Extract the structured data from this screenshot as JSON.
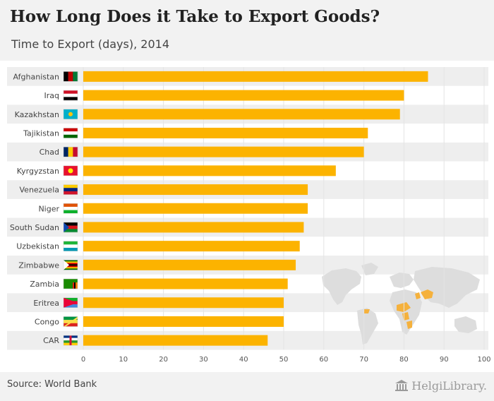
{
  "header": {
    "title": "How Long Does it Take to Export Goods?",
    "subtitle": "Time to Export (days), 2014"
  },
  "footer": {
    "source": "Source: World Bank",
    "brand": "HelgiLibrary."
  },
  "colors": {
    "bar": "#FCB300",
    "band": "#EEEEEE",
    "header_bg": "#F2F2F2",
    "map_land": "#DDDDDD",
    "map_highlight": "#F5B13C"
  },
  "chart_data": {
    "type": "bar",
    "orientation": "horizontal",
    "title": "How Long Does it Take to Export Goods?",
    "subtitle": "Time to Export (days), 2014",
    "xlabel": "",
    "ylabel": "",
    "xlim": [
      0,
      100
    ],
    "xticks": [
      0,
      10,
      20,
      30,
      40,
      50,
      60,
      70,
      80,
      90,
      100
    ],
    "grid": true,
    "categories": [
      "Afghanistan",
      "Iraq",
      "Kazakhstan",
      "Tajikistan",
      "Chad",
      "Kyrgyzstan",
      "Venezuela",
      "Niger",
      "South Sudan",
      "Uzbekistan",
      "Zimbabwe",
      "Zambia",
      "Eritrea",
      "Congo",
      "CAR"
    ],
    "values": [
      86,
      80,
      79,
      71,
      70,
      63,
      56,
      56,
      55,
      54,
      53,
      51,
      50,
      50,
      46
    ],
    "source": "World Bank"
  }
}
